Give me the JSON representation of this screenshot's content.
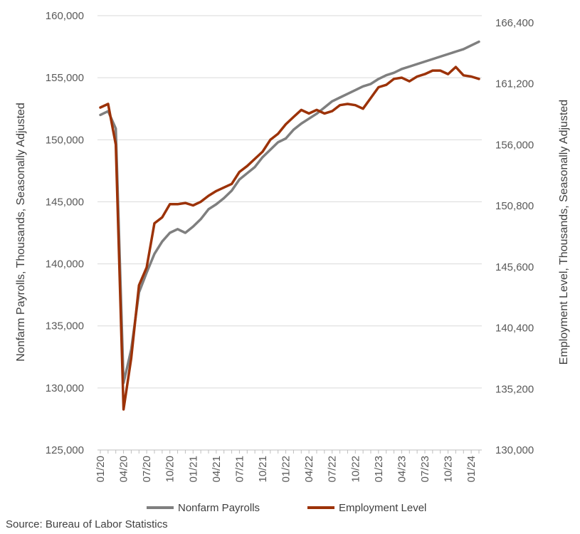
{
  "chart_data": {
    "type": "line",
    "title": "",
    "y_left_label": "Nonfarm Payrolls, Thousands, Seasonally Adjusted",
    "y_right_label": "Employment Level, Thousands, Seasonally Adjusted",
    "y_left_lim": [
      125000,
      160000
    ],
    "y_left_ticks": [
      "160,000",
      "155,000",
      "150,000",
      "145,000",
      "140,000",
      "135,000",
      "130,000",
      "125,000"
    ],
    "y_right_lim": [
      130000,
      166400
    ],
    "y_right_ticks": [
      "166,400",
      "161,200",
      "156,000",
      "150,800",
      "145,600",
      "140,400",
      "135,200",
      "130,000"
    ],
    "x_tick_labels": [
      "01/20",
      "04/20",
      "07/20",
      "10/20",
      "01/21",
      "04/21",
      "07/21",
      "10/21",
      "01/22",
      "04/22",
      "07/22",
      "10/22",
      "01/23",
      "04/23",
      "07/23",
      "10/23",
      "01/24"
    ],
    "grid": "horizontal",
    "legend_position": "bottom",
    "series": [
      {
        "name": "Nonfarm Payrolls",
        "axis": "left",
        "color": "#7f7f7f",
        "values": [
          152000,
          152300,
          150900,
          130400,
          133100,
          137700,
          139300,
          140800,
          141800,
          142500,
          142800,
          142500,
          143000,
          143600,
          144400,
          144800,
          145300,
          145900,
          146800,
          147300,
          147800,
          148600,
          149200,
          149800,
          150100,
          150800,
          151300,
          151700,
          152100,
          152600,
          153100,
          153400,
          153700,
          154000,
          154300,
          154500,
          154900,
          155200,
          155400,
          155700,
          155900,
          156100,
          156300,
          156500,
          156700,
          156900,
          157100,
          157300,
          157600,
          157900
        ]
      },
      {
        "name": "Employment Level",
        "axis": "right",
        "color": "#9c3208",
        "values": [
          158700,
          159000,
          155600,
          133400,
          137700,
          143800,
          145300,
          149000,
          149500,
          150600,
          150600,
          150700,
          150500,
          150800,
          151300,
          151700,
          152000,
          152300,
          153300,
          153800,
          154400,
          155000,
          156000,
          156500,
          157300,
          157900,
          158500,
          158200,
          158500,
          158200,
          158400,
          158900,
          159000,
          158900,
          158600,
          159500,
          160400,
          160600,
          161100,
          161200,
          160900,
          161300,
          161500,
          161800,
          161800,
          161500,
          162100,
          161400,
          161300,
          161100
        ]
      }
    ]
  },
  "footer": {
    "source": "Source: Bureau of Labor Statistics"
  }
}
